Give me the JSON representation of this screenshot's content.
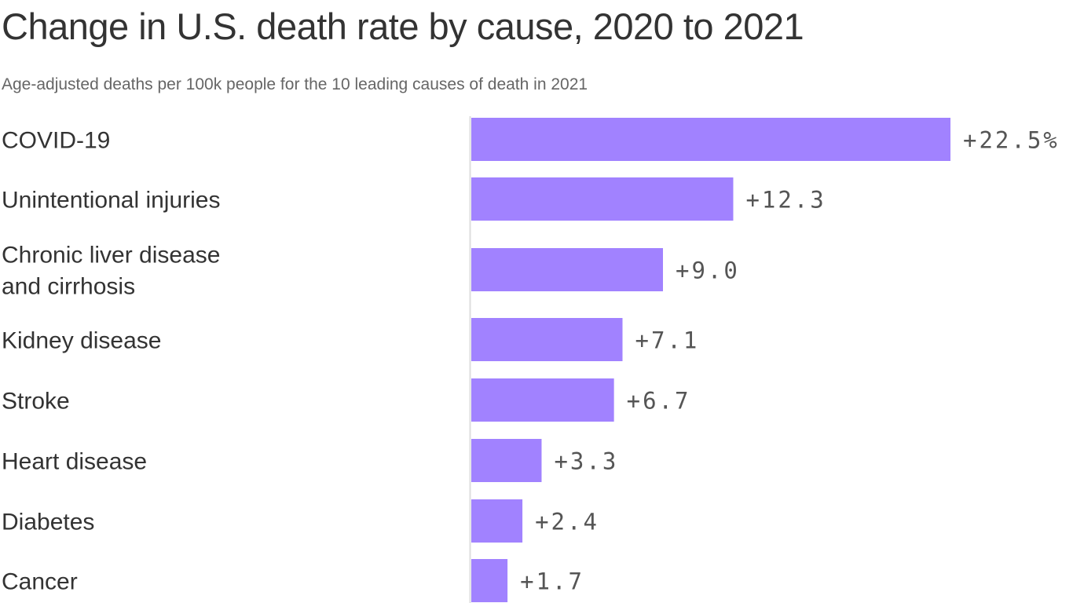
{
  "chart_data": {
    "type": "bar",
    "orientation": "horizontal",
    "title": "Change in U.S. death rate by cause, 2020 to 2021",
    "subtitle": "Age-adjusted deaths per 100k people for the 10 leading causes of death in 2021",
    "categories": [
      [
        "COVID-19"
      ],
      [
        "Unintentional injuries"
      ],
      [
        "Chronic liver disease",
        "and cirrhosis"
      ],
      [
        "Kidney disease"
      ],
      [
        "Stroke"
      ],
      [
        "Heart disease"
      ],
      [
        "Diabetes"
      ],
      [
        "Cancer"
      ]
    ],
    "values": [
      22.5,
      12.3,
      9.0,
      7.1,
      6.7,
      3.3,
      2.4,
      1.7
    ],
    "labels": [
      "+22.5%",
      "+12.3",
      "+9.0",
      "+7.1",
      "+6.7",
      "+3.3",
      "+2.4",
      "+1.7"
    ],
    "xlim": [
      0,
      22.5
    ],
    "bar_color": "#a182ff",
    "axis_color": "#dddddd"
  }
}
